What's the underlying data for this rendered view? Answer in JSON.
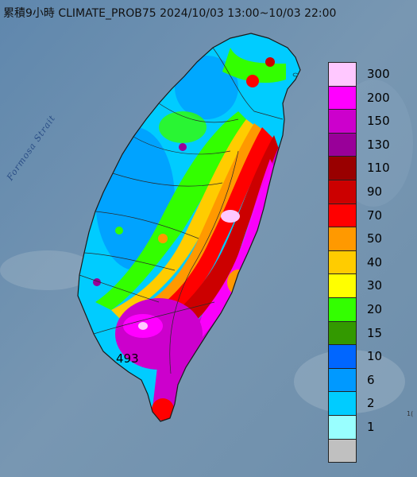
{
  "title": "累積9小時 CLIMATE_PROB75 2024/10/03 13:00~10/03 22:00",
  "strait_label": "Formosa Strait",
  "max_value_label": "493",
  "corner_label": "1(",
  "legend": {
    "items": [
      {
        "label": "300",
        "color": "#ffc8ff"
      },
      {
        "label": "200",
        "color": "#ff00ff"
      },
      {
        "label": "150",
        "color": "#cc00cc"
      },
      {
        "label": "130",
        "color": "#990099"
      },
      {
        "label": "110",
        "color": "#990000"
      },
      {
        "label": "90",
        "color": "#cc0000"
      },
      {
        "label": "70",
        "color": "#ff0000"
      },
      {
        "label": "50",
        "color": "#ff9900"
      },
      {
        "label": "40",
        "color": "#ffcc00"
      },
      {
        "label": "30",
        "color": "#ffff00"
      },
      {
        "label": "20",
        "color": "#33ff00"
      },
      {
        "label": "15",
        "color": "#339900"
      },
      {
        "label": "10",
        "color": "#0066ff"
      },
      {
        "label": "6",
        "color": "#0099ff"
      },
      {
        "label": "2",
        "color": "#00ccff"
      },
      {
        "label": "1",
        "color": "#99ffff"
      },
      {
        "label": "",
        "color": "#c0c0c0"
      }
    ]
  },
  "colors": {
    "sea": "#6f8faa",
    "land_outline": "#1a1a1a"
  }
}
